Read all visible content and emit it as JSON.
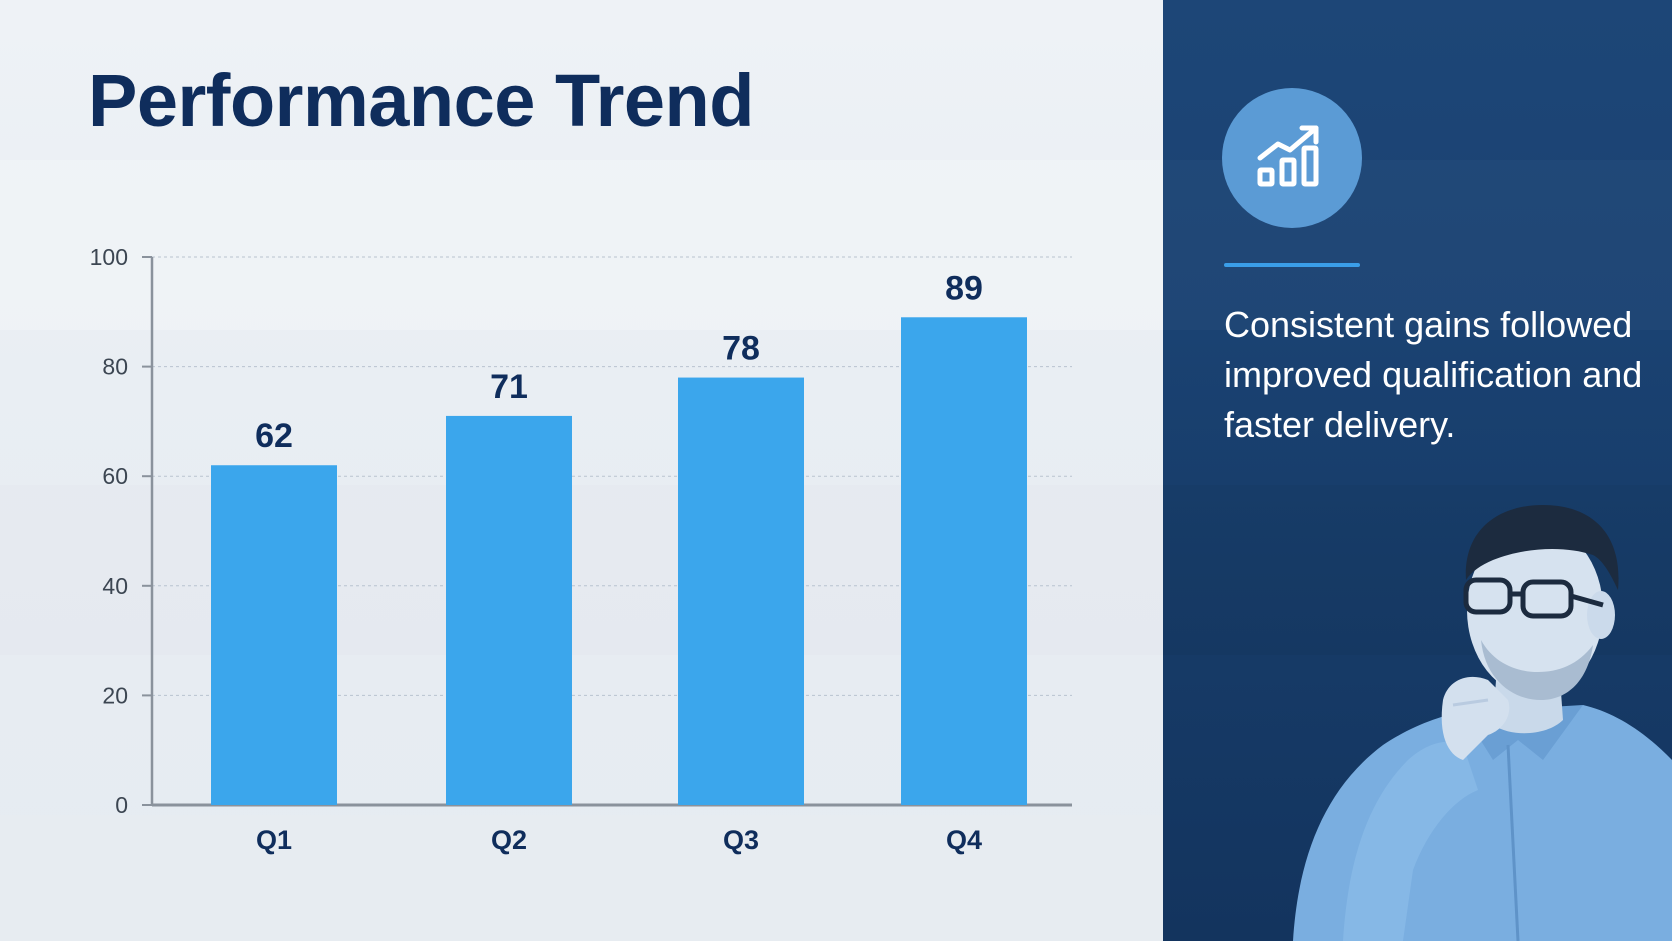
{
  "page": {
    "title": "Performance Trend"
  },
  "colors": {
    "bar": "#3ba6ec",
    "title": "#0f2d5c",
    "axis": "#8a929c",
    "grid": "#b9c3cf",
    "tick_text": "#3c4652",
    "bar_label": "#0f2d5c",
    "right_panel": "#173c69",
    "icon_circle": "#5b9bd5",
    "accent_line": "#3a9ee8"
  },
  "chart_data": {
    "type": "bar",
    "categories": [
      "Q1",
      "Q2",
      "Q3",
      "Q4"
    ],
    "values": [
      62,
      71,
      78,
      89
    ],
    "data_labels": [
      "62",
      "71",
      "78",
      "89"
    ],
    "ylim": [
      0,
      100
    ],
    "yticks": [
      "0",
      "20",
      "40",
      "60",
      "80",
      "100"
    ],
    "grid": true,
    "xlabel": "",
    "ylabel": ""
  },
  "insight": {
    "icon": "growth-chart-icon",
    "text": "Consistent gains followed improved qualification and faster delivery."
  },
  "illustration": {
    "icon": "thinking-man-with-glasses"
  }
}
